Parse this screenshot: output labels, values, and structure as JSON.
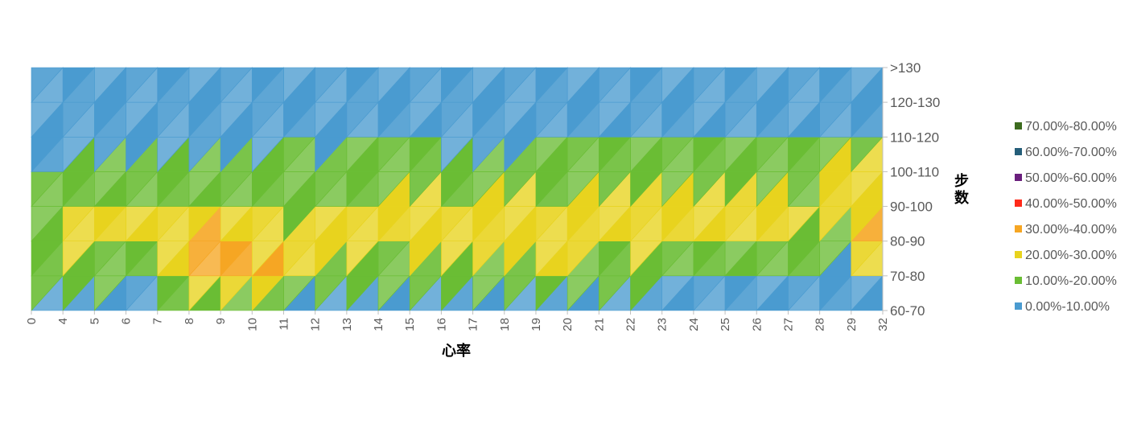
{
  "chart_data": {
    "type": "heatmap",
    "title": "",
    "xlabel": "心率",
    "ylabel": "步数",
    "categories_x": [
      "0",
      "4",
      "5",
      "6",
      "7",
      "8",
      "9",
      "10",
      "11",
      "12",
      "13",
      "14",
      "15",
      "16",
      "17",
      "18",
      "19",
      "20",
      "21",
      "22",
      "23",
      "24",
      "25",
      "26",
      "27",
      "28",
      "29",
      "32"
    ],
    "categories_y": [
      "60-70",
      "70-80",
      "80-90",
      "90-100",
      "100-110",
      "110-120",
      "120-130",
      ">130"
    ],
    "legend": [
      {
        "label": "70.00%-80.00%",
        "color": "#3d6b1f"
      },
      {
        "label": "60.00%-70.00%",
        "color": "#255e79"
      },
      {
        "label": "50.00%-60.00%",
        "color": "#6a1f7d"
      },
      {
        "label": "40.00%-50.00%",
        "color": "#ff2a1a"
      },
      {
        "label": "30.00%-40.00%",
        "color": "#f6a623"
      },
      {
        "label": "20.00%-30.00%",
        "color": "#e8d31e"
      },
      {
        "label": "10.00%-20.00%",
        "color": "#6abd34"
      },
      {
        "label": "0.00%-10.00%",
        "color": "#4a9bd0"
      }
    ],
    "legend_position": "right",
    "values_unit": "%",
    "z": [
      [
        2,
        3,
        2,
        2,
        3,
        2,
        3,
        2,
        3,
        2,
        3,
        4,
        3,
        2,
        3,
        4,
        3,
        2,
        4,
        4,
        4,
        4,
        4,
        4,
        4,
        2,
        2,
        2
      ],
      [
        12,
        18,
        17,
        14,
        12,
        25,
        38,
        38,
        35,
        15,
        17,
        12,
        14,
        15,
        14,
        14,
        13,
        16,
        14,
        15,
        12,
        12,
        12,
        12,
        12,
        10,
        5,
        5
      ],
      [
        16,
        22,
        22,
        18,
        22,
        45,
        35,
        28,
        22,
        24,
        25,
        18,
        24,
        28,
        28,
        25,
        28,
        38,
        22,
        22,
        25,
        22,
        22,
        22,
        22,
        16,
        12,
        55
      ],
      [
        14,
        18,
        25,
        22,
        22,
        18,
        24,
        20,
        14,
        22,
        16,
        24,
        24,
        24,
        22,
        22,
        22,
        22,
        24,
        24,
        22,
        24,
        25,
        24,
        22,
        20,
        24,
        28
      ],
      [
        9,
        12,
        14,
        12,
        15,
        10,
        14,
        10,
        14,
        14,
        12,
        16,
        16,
        14,
        12,
        16,
        16,
        14,
        14,
        14,
        14,
        16,
        16,
        18,
        16,
        14,
        36,
        22
      ],
      [
        6,
        7,
        7,
        7,
        6,
        7,
        7,
        8,
        9,
        7,
        6,
        12,
        8,
        7,
        6,
        6,
        6,
        8,
        9,
        9,
        7,
        10,
        10,
        12,
        12,
        11,
        12,
        10
      ],
      [
        4,
        4,
        5,
        4,
        4,
        4,
        4,
        5,
        4,
        4,
        4,
        4,
        5,
        4,
        4,
        4,
        4,
        5,
        4,
        4,
        5,
        6,
        4,
        5,
        5,
        4,
        4,
        4
      ],
      [
        2,
        3,
        2,
        2,
        2,
        2,
        2,
        3,
        2,
        2,
        2,
        2,
        2,
        2,
        2,
        2,
        2,
        2,
        2,
        2,
        3,
        2,
        2,
        2,
        2,
        2,
        2,
        2
      ]
    ]
  }
}
